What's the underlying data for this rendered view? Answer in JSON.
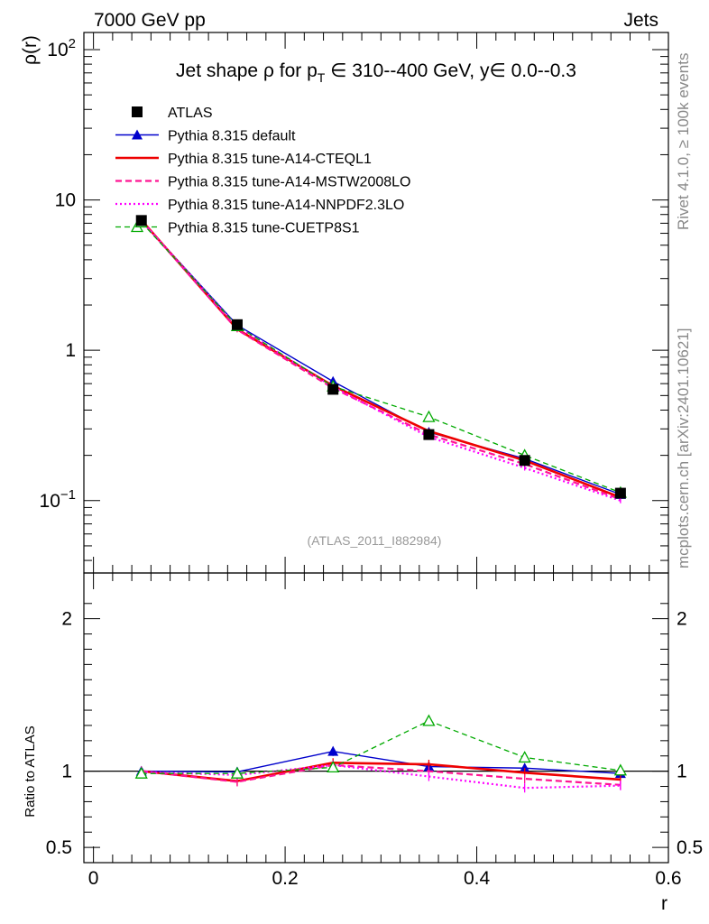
{
  "header": {
    "energy": "7000 GeV pp",
    "category": "Jets"
  },
  "side": {
    "rivet": "Rivet 4.1.0, ≥ 100k events",
    "mcplots": "mcplots.cern.ch [arXiv:2401.10621]"
  },
  "chart_data": {
    "type": "line",
    "title_parts": {
      "prefix": "Jet shape ",
      "rho": "ρ",
      "for_p": " for p",
      "sub_T": "T",
      "range": " ∈ 310--400 GeV, y∈ 0.0--0.3"
    },
    "analysis_label": "(ATLAS_2011_I882984)",
    "x": [
      0.05,
      0.15,
      0.25,
      0.35,
      0.45,
      0.55
    ],
    "xlim": [
      -0.01,
      0.6
    ],
    "xlabel": "r",
    "xticks": [
      "0",
      "0.2",
      "0.4",
      "0.6"
    ],
    "xtick_values": [
      0,
      0.2,
      0.4,
      0.6
    ],
    "main": {
      "ylabel": "ρ(r)",
      "yscale": "log",
      "ylim": [
        0.033,
        130
      ],
      "ytick_labels": [
        {
          "value": 0.1,
          "base": "10",
          "exp": "−1"
        },
        {
          "value": 1,
          "base": "1",
          "exp": ""
        },
        {
          "value": 10,
          "base": "10",
          "exp": ""
        },
        {
          "value": 100,
          "base": "10",
          "exp": "2"
        }
      ]
    },
    "ratio": {
      "ylabel": "Ratio to ATLAS",
      "ylim": [
        0.4,
        2.3
      ],
      "yticks": [
        "0.5",
        "1",
        "2"
      ],
      "ytick_values": [
        0.5,
        1,
        2
      ]
    },
    "series": [
      {
        "name": "ATLAS",
        "color": "#000000",
        "style": "data",
        "marker": "square",
        "values": [
          7.3,
          1.48,
          0.55,
          0.275,
          0.185,
          0.112
        ],
        "errors": [
          0.2,
          0.04,
          0.03,
          0.02,
          0.015,
          0.008
        ]
      },
      {
        "name": "Pythia 8.315 default",
        "color": "#0000cc",
        "style": "solid-thin",
        "marker": "triangle",
        "values": [
          7.28,
          1.47,
          0.62,
          0.285,
          0.19,
          0.11
        ],
        "ratio": [
          1.0,
          0.995,
          1.13,
          1.03,
          1.02,
          0.985
        ]
      },
      {
        "name": "Pythia 8.315 tune-A14-CTEQL1",
        "color": "#ee0000",
        "style": "solid-thick",
        "marker": "none",
        "values": [
          7.35,
          1.38,
          0.58,
          0.29,
          0.185,
          0.105
        ],
        "ratio": [
          1.0,
          0.935,
          1.055,
          1.045,
          0.99,
          0.945
        ]
      },
      {
        "name": "Pythia 8.315 tune-A14-MSTW2008LO",
        "color": "#ff1493",
        "style": "dashed",
        "marker": "none",
        "values": [
          7.3,
          1.37,
          0.56,
          0.275,
          0.175,
          0.102
        ],
        "ratio": [
          1.0,
          0.93,
          1.04,
          1.0,
          0.95,
          0.91
        ]
      },
      {
        "name": "Pythia 8.315 tune-A14-NNPDF2.3LO",
        "color": "#ff00ff",
        "style": "dotted",
        "marker": "none",
        "values": [
          7.25,
          1.44,
          0.57,
          0.265,
          0.165,
          0.1
        ],
        "ratio": [
          0.995,
          0.975,
          1.04,
          0.965,
          0.89,
          0.905
        ]
      },
      {
        "name": "Pythia 8.315 tune-CUETP8S1",
        "color": "#00aa00",
        "style": "dashed-thin",
        "marker": "open-triangle",
        "values": [
          7.1,
          1.45,
          0.575,
          0.36,
          0.2,
          0.113
        ],
        "ratio": [
          0.985,
          0.985,
          1.025,
          1.33,
          1.09,
          1.005
        ]
      }
    ]
  }
}
